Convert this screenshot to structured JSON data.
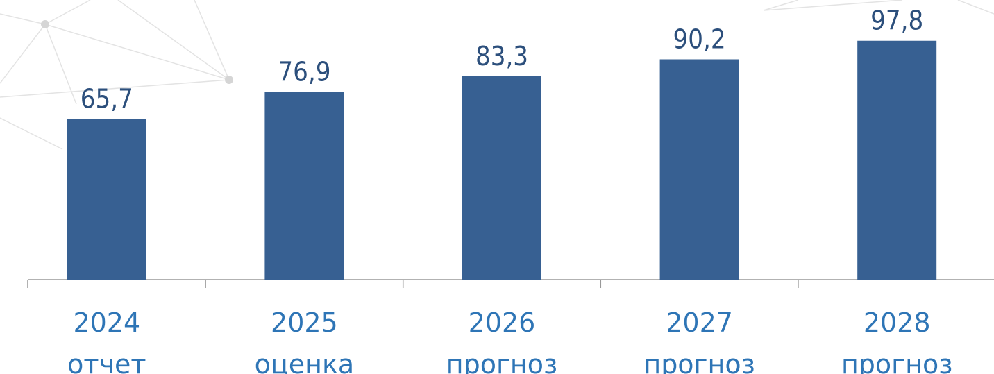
{
  "chart_data": {
    "type": "bar",
    "categories": [
      [
        "2024",
        "отчет"
      ],
      [
        "2025",
        "оценка"
      ],
      [
        "2026",
        "прогноз"
      ],
      [
        "2027",
        "прогноз"
      ],
      [
        "2028",
        "прогноз"
      ]
    ],
    "values": [
      65.7,
      76.9,
      83.3,
      90.2,
      97.8
    ],
    "value_labels": [
      "65,7",
      "76,9",
      "83,3",
      "90,2",
      "97,8"
    ],
    "color": "#376092",
    "ylim": [
      0,
      100
    ]
  }
}
